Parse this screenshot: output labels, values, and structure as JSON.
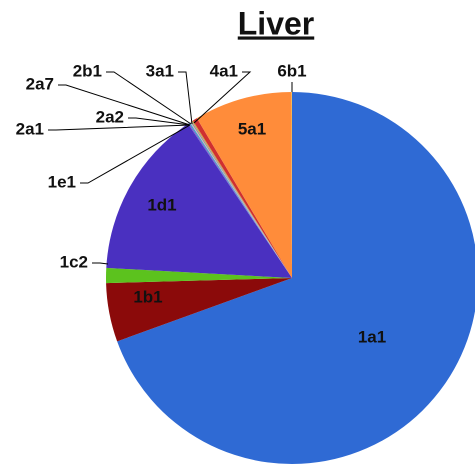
{
  "chart_data": {
    "type": "pie",
    "title": "Liver",
    "categories": [
      "1a1",
      "1b1",
      "1c2",
      "1d1",
      "1e1",
      "2a1",
      "2a2",
      "2a7",
      "2b1",
      "3a1",
      "4a1",
      "5a1",
      "6b1"
    ],
    "values": [
      69.5,
      5.1,
      1.3,
      14.7,
      0.1,
      0.1,
      0.1,
      0.05,
      0.05,
      0.1,
      0.4,
      8.5,
      0.05
    ],
    "colors": [
      "#2f6ad4",
      "#8b0a0a",
      "#5cc21e",
      "#4a30c0",
      "#7a5fd0",
      "#3aa0c8",
      "#c0c0c0",
      "#a04080",
      "#80c0a0",
      "#d0a040",
      "#d03030",
      "#ff8c3a",
      "#f0d060"
    ]
  }
}
